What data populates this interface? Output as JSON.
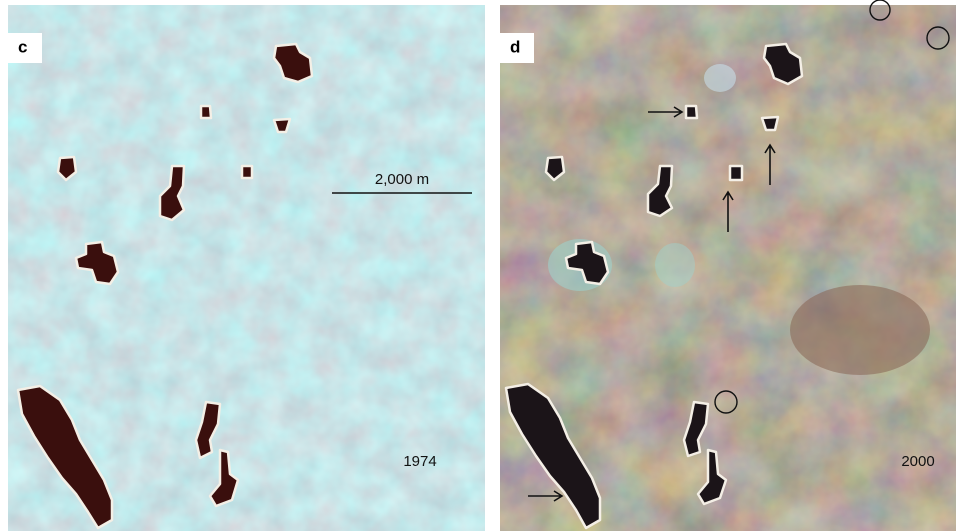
{
  "panels": [
    {
      "label": "c",
      "scale_label": "2,000 m",
      "year": "1974"
    },
    {
      "label": "d",
      "year": "2000"
    }
  ]
}
